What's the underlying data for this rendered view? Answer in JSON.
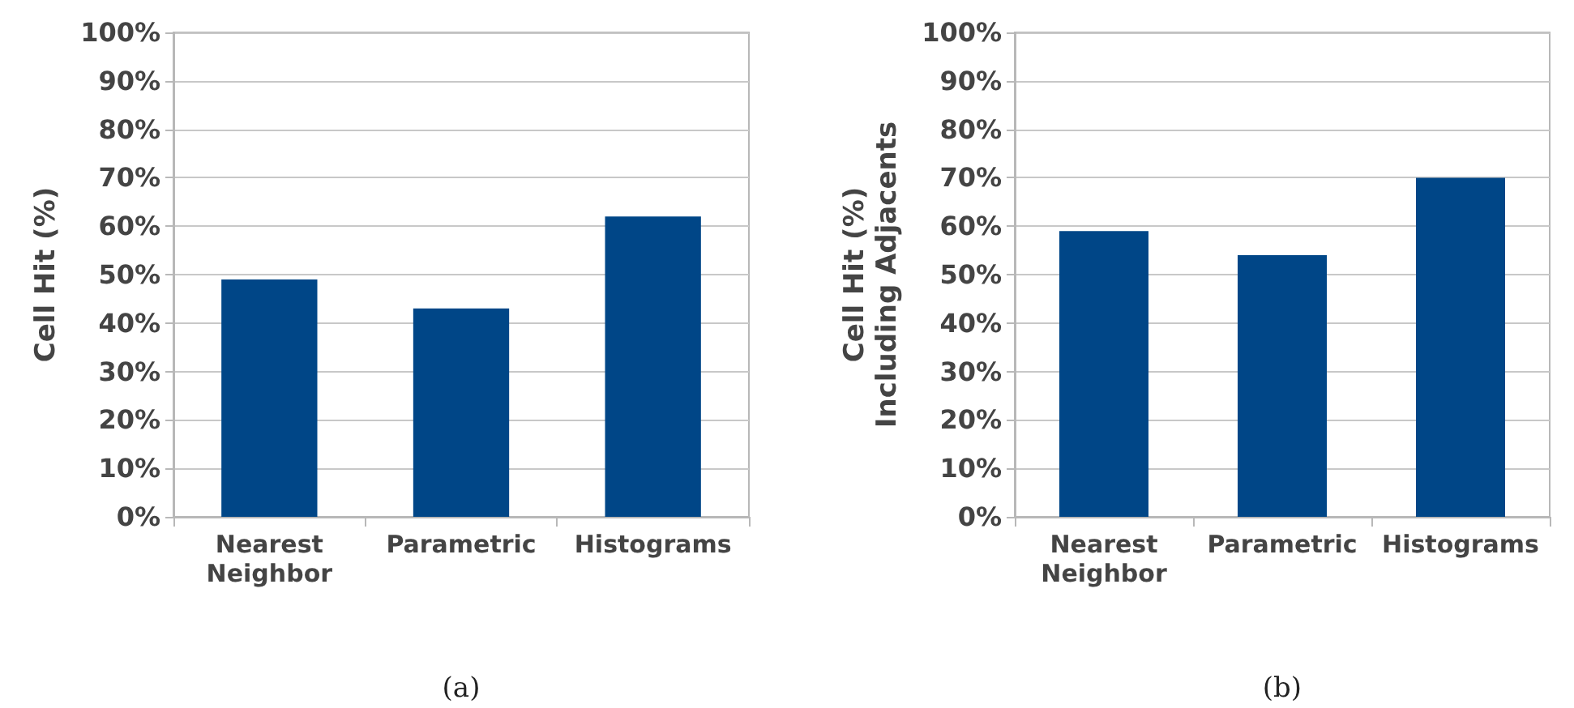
{
  "chart_data": [
    {
      "type": "bar",
      "ylabel": "Cell Hit (%)",
      "categories": [
        "Nearest Neighbor",
        "Parametric",
        "Histograms"
      ],
      "values": [
        49,
        43,
        62
      ],
      "color": "#004687",
      "ylim": [
        0,
        100
      ],
      "yticks": [
        {
          "value": 0,
          "label": "0%"
        },
        {
          "value": 10,
          "label": "10%"
        },
        {
          "value": 20,
          "label": "20%"
        },
        {
          "value": 30,
          "label": "30%"
        },
        {
          "value": 40,
          "label": "40%"
        },
        {
          "value": 50,
          "label": "50%"
        },
        {
          "value": 60,
          "label": "60%"
        },
        {
          "value": 70,
          "label": "70%"
        },
        {
          "value": 80,
          "label": "80%"
        },
        {
          "value": 90,
          "label": "90%"
        },
        {
          "value": 100,
          "label": "100%"
        }
      ],
      "grid": "y",
      "annotations": [
        "(a)"
      ]
    },
    {
      "type": "bar",
      "ylabel": "Cell Hit (%)\nIncluding Adjacents",
      "categories": [
        "Nearest Neighbor",
        "Parametric",
        "Histograms"
      ],
      "values": [
        59,
        54,
        70
      ],
      "color": "#004687",
      "ylim": [
        0,
        100
      ],
      "yticks": [
        {
          "value": 0,
          "label": "0%"
        },
        {
          "value": 10,
          "label": "10%"
        },
        {
          "value": 20,
          "label": "20%"
        },
        {
          "value": 30,
          "label": "30%"
        },
        {
          "value": 40,
          "label": "40%"
        },
        {
          "value": 50,
          "label": "50%"
        },
        {
          "value": 60,
          "label": "60%"
        },
        {
          "value": 70,
          "label": "70%"
        },
        {
          "value": 80,
          "label": "80%"
        },
        {
          "value": 90,
          "label": "90%"
        },
        {
          "value": 100,
          "label": "100%"
        }
      ],
      "grid": "y",
      "annotations": [
        "(b)"
      ]
    }
  ]
}
